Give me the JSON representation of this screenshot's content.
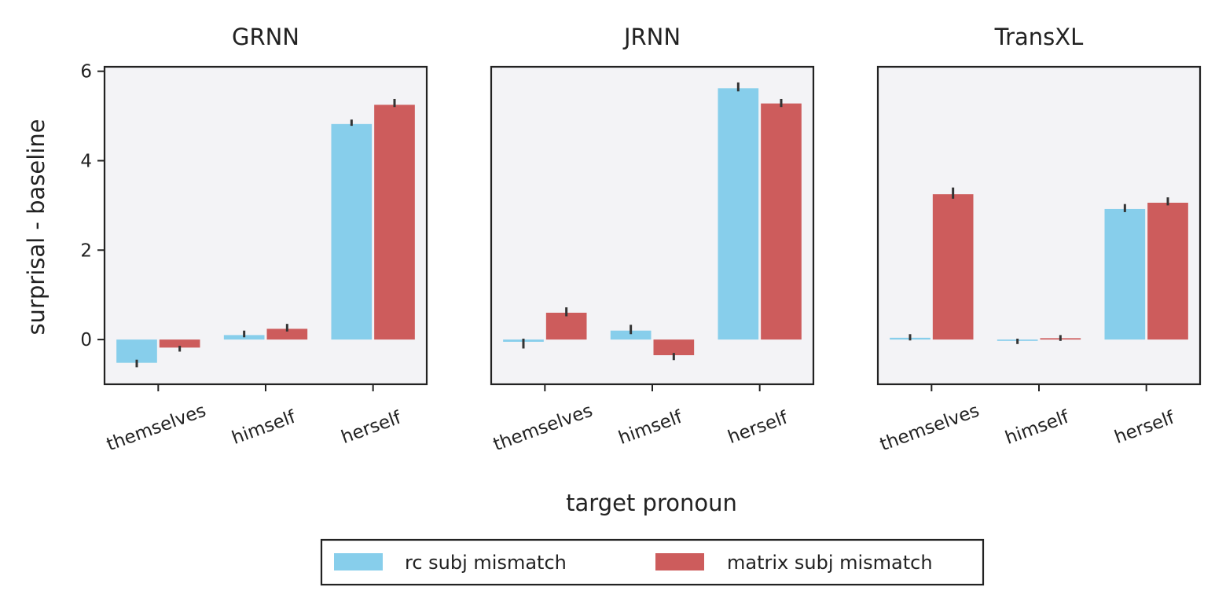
{
  "chart_data": {
    "type": "bar",
    "xlabel": "target pronoun",
    "ylabel": "surprisal - baseline",
    "ylim": [
      -1.0,
      6.1
    ],
    "yticks": [
      0,
      2,
      4,
      6
    ],
    "categories": [
      "themselves",
      "himself",
      "herself"
    ],
    "legend": {
      "placement": "bottom-center",
      "entries": [
        {
          "label": "rc subj mismatch",
          "color": "#87CEEB"
        },
        {
          "label": "matrix subj mismatch",
          "color": "#CD5C5C"
        }
      ]
    },
    "panels": [
      {
        "title": "GRNN",
        "series": [
          {
            "name": "rc subj mismatch",
            "values": [
              -0.52,
              0.1,
              4.82
            ],
            "err": [
              [
                -0.62,
                -0.45
              ],
              [
                0.05,
                0.2
              ],
              [
                4.78,
                4.92
              ]
            ]
          },
          {
            "name": "matrix subj mismatch",
            "values": [
              -0.18,
              0.24,
              5.25
            ],
            "err": [
              [
                -0.27,
                -0.14
              ],
              [
                0.18,
                0.35
              ],
              [
                5.2,
                5.38
              ]
            ]
          }
        ]
      },
      {
        "title": "JRNN",
        "series": [
          {
            "name": "rc subj mismatch",
            "values": [
              -0.05,
              0.2,
              5.62
            ],
            "err": [
              [
                -0.2,
                0.02
              ],
              [
                0.12,
                0.33
              ],
              [
                5.55,
                5.75
              ]
            ]
          },
          {
            "name": "matrix subj mismatch",
            "values": [
              0.6,
              -0.35,
              5.28
            ],
            "err": [
              [
                0.52,
                0.72
              ],
              [
                -0.46,
                -0.3
              ],
              [
                5.2,
                5.38
              ]
            ]
          }
        ]
      },
      {
        "title": "TransXL",
        "series": [
          {
            "name": "rc subj mismatch",
            "values": [
              0.04,
              -0.03,
              2.92
            ],
            "err": [
              [
                -0.02,
                0.12
              ],
              [
                -0.1,
                0.02
              ],
              [
                2.85,
                3.03
              ]
            ]
          },
          {
            "name": "matrix subj mismatch",
            "values": [
              3.25,
              0.03,
              3.06
            ],
            "err": [
              [
                3.15,
                3.4
              ],
              [
                -0.03,
                0.1
              ],
              [
                3.0,
                3.18
              ]
            ]
          }
        ]
      }
    ]
  }
}
